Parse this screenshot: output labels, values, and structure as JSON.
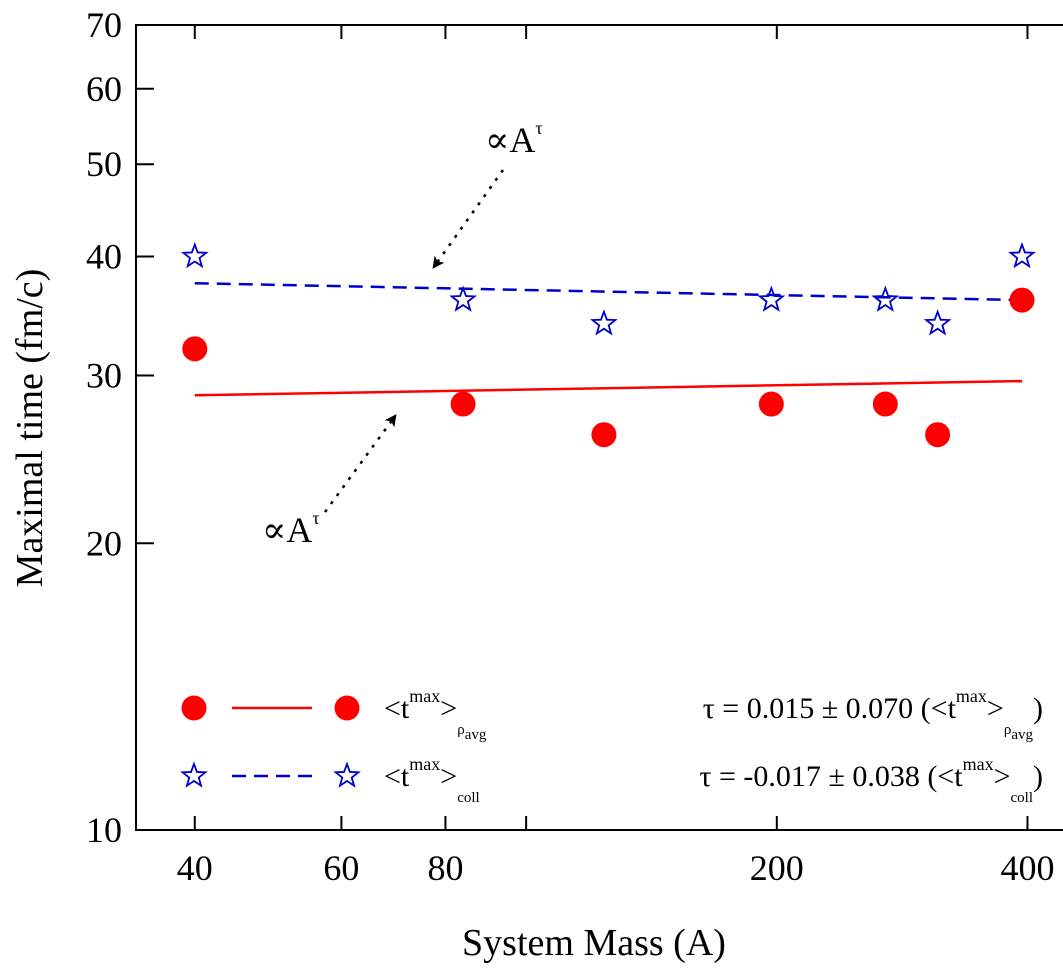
{
  "chart_data": {
    "type": "scatter",
    "xlabel": "System Mass (A)",
    "ylabel": "Maximal time (fm/c)",
    "xscale": "log",
    "yscale": "log",
    "xlim": [
      34,
      540
    ],
    "ylim": [
      10,
      70
    ],
    "x_ticks": [
      40,
      60,
      80,
      200,
      400
    ],
    "x_minor_ticks": [
      100
    ],
    "y_ticks": [
      10,
      20,
      30,
      40,
      50,
      60,
      70
    ],
    "grid": false,
    "colors": {
      "rho": "#ff0000",
      "coll": "#0000cc"
    },
    "series": [
      {
        "name": "<t^max>_ρavg",
        "marker": "circle",
        "x": [
          40,
          84,
          124,
          197,
          270,
          312,
          394
        ],
        "y": [
          32,
          28,
          26,
          28,
          28,
          26,
          36
        ]
      },
      {
        "name": "<t^max>_coll",
        "marker": "star",
        "x": [
          40,
          84,
          124,
          197,
          270,
          312,
          394
        ],
        "y": [
          40,
          36,
          34,
          36,
          36,
          34,
          40
        ]
      }
    ],
    "fits": [
      {
        "series": "<t^max>_ρavg",
        "style": "solid",
        "x": [
          40,
          394
        ],
        "y": [
          28.6,
          29.6
        ]
      },
      {
        "series": "<t^max>_coll",
        "style": "dashed",
        "x": [
          40,
          394
        ],
        "y": [
          37.5,
          36.0
        ]
      }
    ],
    "legend_position": "bottom-left",
    "legend": [
      {
        "main": "<t",
        "sup": "max",
        "close": ">",
        "sub": "ρ",
        "subsub": "avg"
      },
      {
        "main": "<t",
        "sup": "max",
        "close": ">",
        "sub": "coll",
        "subsub": ""
      }
    ],
    "fit_results": [
      {
        "prefix": "τ =  0.015 ± 0.070 (<t",
        "sup": "max",
        "close": ">",
        "sub": "ρ",
        "subsub": "avg",
        "suffix": ")"
      },
      {
        "prefix": "τ = -0.017 ± 0.038 (<t",
        "sup": "max",
        "close": ">",
        "sub": "coll",
        "subsub": "",
        "suffix": ")"
      }
    ],
    "annotations": [
      {
        "text": "∝A",
        "sup": "τ",
        "target": "blue-fit"
      },
      {
        "text": "∝A",
        "sup": "τ",
        "target": "red-fit"
      }
    ]
  }
}
